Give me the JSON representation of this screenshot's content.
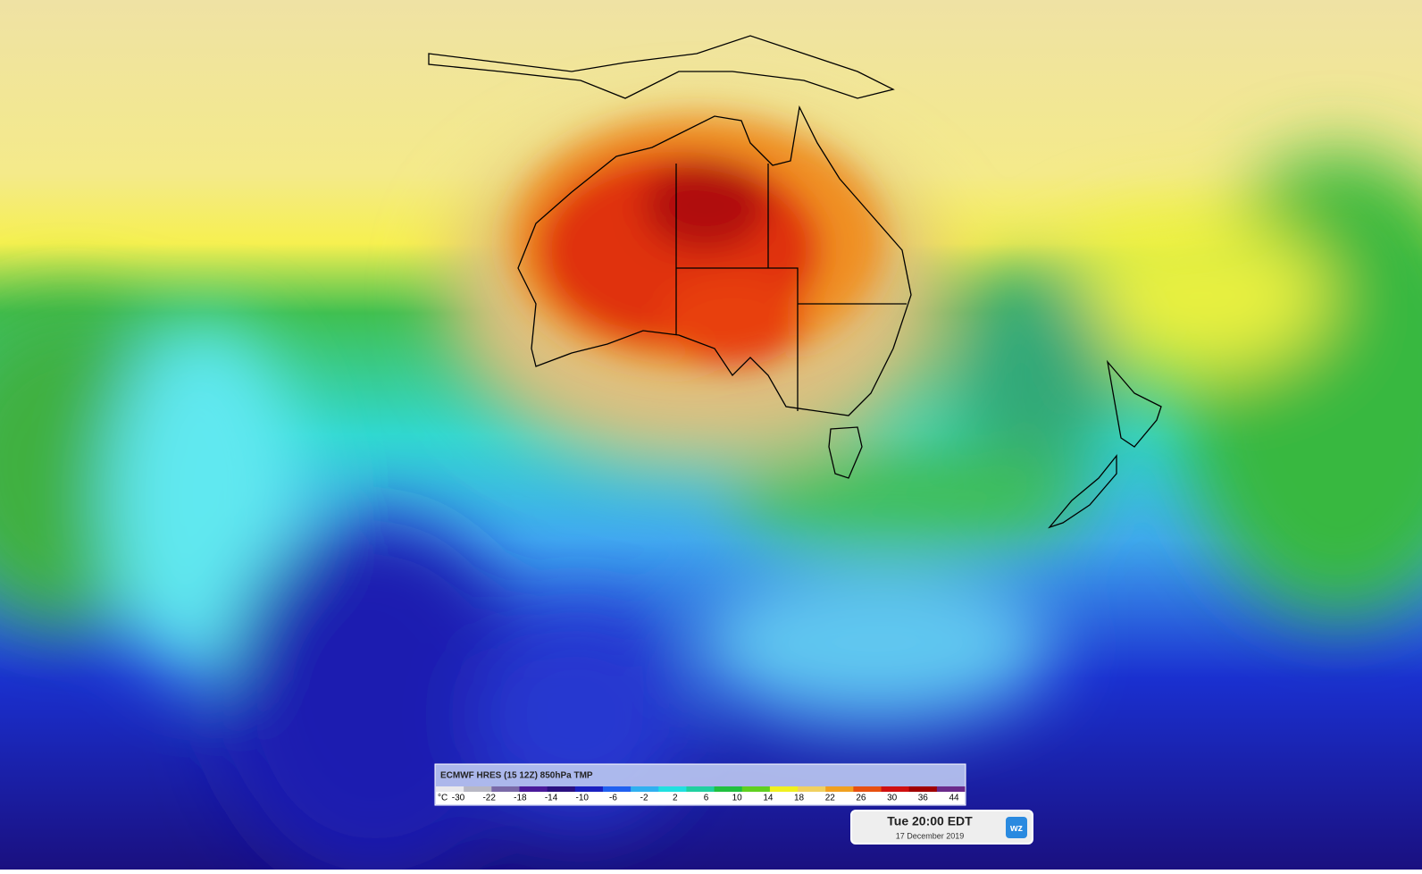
{
  "legend": {
    "title": "ECMWF HRES (15 12Z) 850hPa TMP",
    "unit": "°C",
    "ticks": [
      -30,
      -22,
      -18,
      -14,
      -10,
      -6,
      -2,
      2,
      6,
      10,
      14,
      18,
      22,
      26,
      30,
      36,
      44
    ],
    "colors": [
      "#e8e8ec",
      "#b8b8c4",
      "#7a6aa8",
      "#4a1a9a",
      "#2a1080",
      "#1a20c0",
      "#2060f0",
      "#30b0f0",
      "#20e0e0",
      "#20d0a0",
      "#20c040",
      "#60d020",
      "#f0f020",
      "#f0d060",
      "#f0a020",
      "#e85010",
      "#d01010",
      "#a00000",
      "#6a2a8a"
    ]
  },
  "time": {
    "label": "Tue 20:00 EDT",
    "date": "17 December 2019",
    "logo": "wz"
  }
}
